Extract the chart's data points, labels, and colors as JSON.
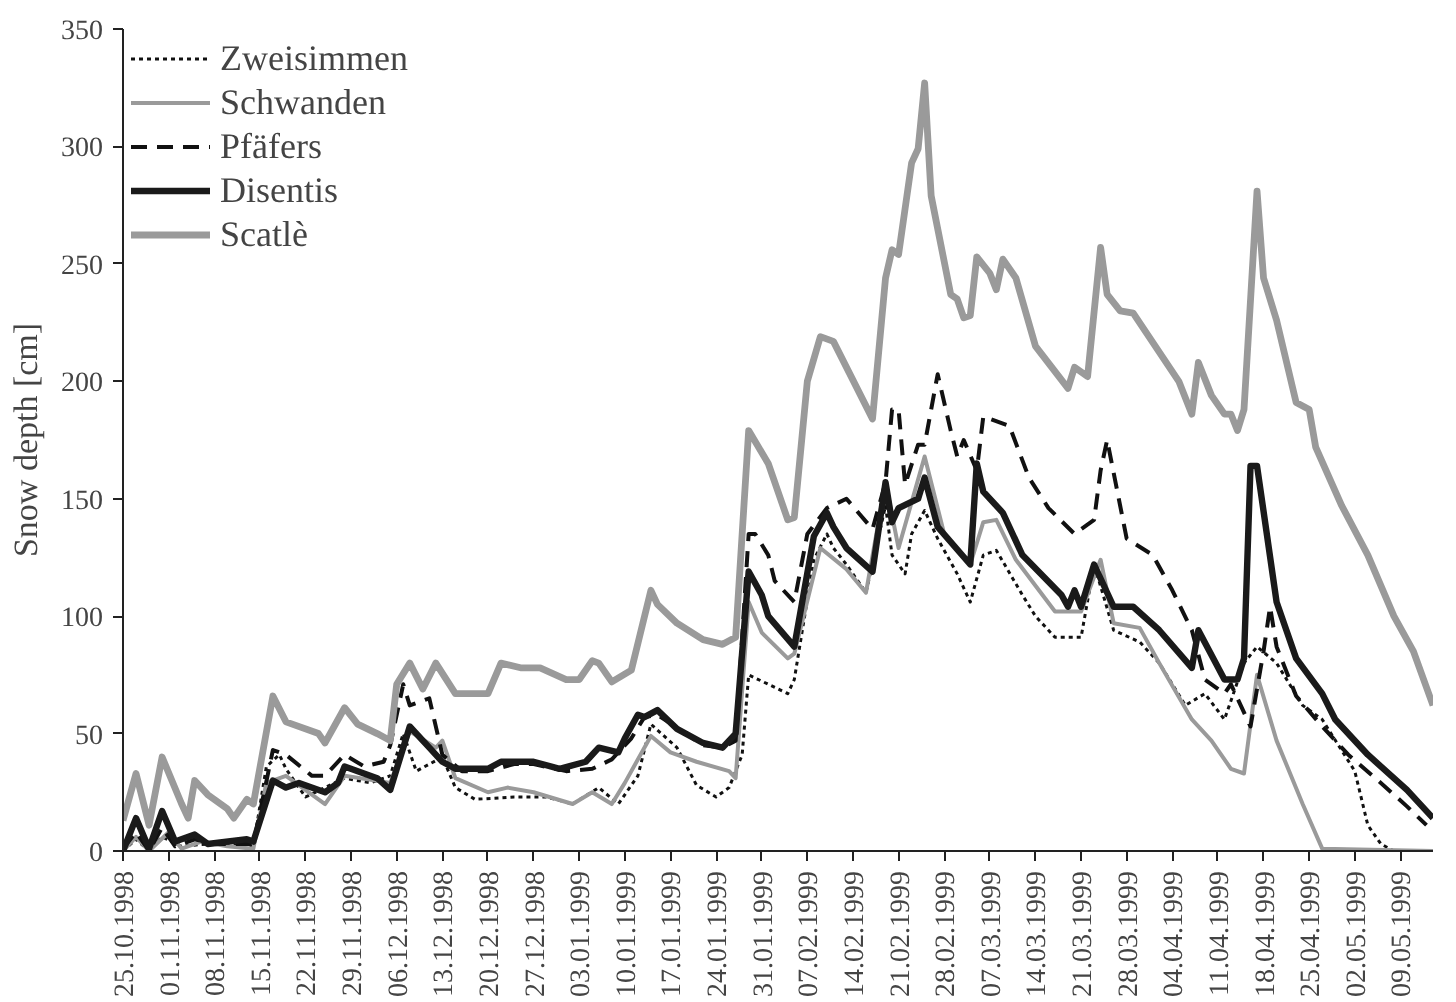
{
  "chart_data": {
    "type": "line",
    "ylabel": "Snow depth [cm]",
    "xlim": [
      "1998-10-25",
      "1999-05-14"
    ],
    "ylim": [
      0,
      350
    ],
    "yticks": [
      0,
      50,
      100,
      150,
      200,
      250,
      300,
      350
    ],
    "xticks": [
      {
        "value": "1998-10-25",
        "label": "25.10.1998"
      },
      {
        "value": "1998-11-01",
        "label": "01.11.1998"
      },
      {
        "value": "1998-11-08",
        "label": "08.11.1998"
      },
      {
        "value": "1998-11-15",
        "label": "15.11.1998"
      },
      {
        "value": "1998-11-22",
        "label": "22.11.1998"
      },
      {
        "value": "1998-11-29",
        "label": "29.11.1998"
      },
      {
        "value": "1998-12-06",
        "label": "06.12.1998"
      },
      {
        "value": "1998-12-13",
        "label": "13.12.1998"
      },
      {
        "value": "1998-12-20",
        "label": "20.12.1998"
      },
      {
        "value": "1998-12-27",
        "label": "27.12.1998"
      },
      {
        "value": "1999-01-03",
        "label": "03.01.1999"
      },
      {
        "value": "1999-01-10",
        "label": "10.01.1999"
      },
      {
        "value": "1999-01-17",
        "label": "17.01.1999"
      },
      {
        "value": "1999-01-24",
        "label": "24.01.1999"
      },
      {
        "value": "1999-01-31",
        "label": "31.01.1999"
      },
      {
        "value": "1999-02-07",
        "label": "07.02.1999"
      },
      {
        "value": "1999-02-14",
        "label": "14.02.1999"
      },
      {
        "value": "1999-02-21",
        "label": "21.02.1999"
      },
      {
        "value": "1999-02-28",
        "label": "28.02.1999"
      },
      {
        "value": "1999-03-07",
        "label": "07.03.1999"
      },
      {
        "value": "1999-03-14",
        "label": "14.03.1999"
      },
      {
        "value": "1999-03-21",
        "label": "21.03.1999"
      },
      {
        "value": "1999-03-28",
        "label": "28.03.1999"
      },
      {
        "value": "1999-04-04",
        "label": "04.04.1999"
      },
      {
        "value": "1999-04-11",
        "label": "11.04.1999"
      },
      {
        "value": "1999-04-18",
        "label": "18.04.1999"
      },
      {
        "value": "1999-04-25",
        "label": "25.04.1999"
      },
      {
        "value": "1999-05-02",
        "label": "02.05.1999"
      },
      {
        "value": "1999-05-09",
        "label": "09.05.1999"
      }
    ],
    "grid": false,
    "legend": "top left",
    "marker": "none",
    "series": [
      {
        "name": "Zweisimmen",
        "color": "#111111",
        "line_style": "dotted",
        "x": [
          "1998-10-25",
          "1998-10-27",
          "1998-10-29",
          "1998-10-31",
          "1998-11-03",
          "1998-11-07",
          "1998-11-14",
          "1998-11-16",
          "1998-11-18",
          "1998-11-19",
          "1998-11-22",
          "1998-11-25",
          "1998-11-28",
          "1998-12-02",
          "1998-12-05",
          "1998-12-07",
          "1998-12-09",
          "1998-12-13",
          "1998-12-15",
          "1998-12-18",
          "1998-12-24",
          "1998-12-29",
          "1999-01-02",
          "1999-01-06",
          "1999-01-09",
          "1999-01-12",
          "1999-01-14",
          "1999-01-18",
          "1999-01-21",
          "1999-01-24",
          "1999-01-26",
          "1999-01-28",
          "1999-01-29",
          "1999-02-01",
          "1999-02-04",
          "1999-02-05",
          "1999-02-08",
          "1999-02-10",
          "1999-02-11",
          "1999-02-13",
          "1999-02-16",
          "1999-02-19",
          "1999-02-20",
          "1999-02-22",
          "1999-02-23",
          "1999-02-25",
          "1999-02-27",
          "1999-03-02",
          "1999-03-04",
          "1999-03-06",
          "1999-03-08",
          "1999-03-12",
          "1999-03-14",
          "1999-03-17",
          "1999-03-21",
          "1999-03-23",
          "1999-03-26",
          "1999-03-30",
          "1999-04-02",
          "1999-04-06",
          "1999-04-09",
          "1999-04-12",
          "1999-04-15",
          "1999-04-17",
          "1999-04-20",
          "1999-04-24",
          "1999-04-27",
          "1999-05-02",
          "1999-05-04",
          "1999-05-06",
          "1999-05-08",
          "1999-05-14"
        ],
        "values": [
          0,
          5,
          0,
          6,
          2,
          3,
          2,
          36,
          41,
          35,
          23,
          27,
          31,
          29,
          32,
          50,
          34,
          40,
          27,
          22,
          23,
          23,
          20,
          27,
          20,
          32,
          54,
          44,
          28,
          23,
          27,
          41,
          75,
          71,
          67,
          73,
          124,
          135,
          129,
          122,
          110,
          147,
          126,
          118,
          135,
          145,
          133,
          118,
          106,
          126,
          128,
          109,
          100,
          91,
          91,
          122,
          94,
          89,
          80,
          62,
          67,
          56,
          80,
          87,
          80,
          62,
          56,
          34,
          11,
          3,
          0,
          0
        ]
      },
      {
        "name": "Schwanden",
        "color": "#9a9a9a",
        "line_style": "solid",
        "x": [
          "1998-10-25",
          "1998-10-27",
          "1998-10-29",
          "1998-11-01",
          "1998-11-03",
          "1998-11-06",
          "1998-11-10",
          "1998-11-14",
          "1998-11-16",
          "1998-11-19",
          "1998-11-25",
          "1998-11-28",
          "1998-12-05",
          "1998-12-08",
          "1998-12-12",
          "1998-12-13",
          "1998-12-15",
          "1998-12-20",
          "1998-12-23",
          "1998-12-27",
          "1999-01-02",
          "1999-01-05",
          "1999-01-08",
          "1999-01-10",
          "1999-01-14",
          "1999-01-17",
          "1999-01-21",
          "1999-01-26",
          "1999-01-27",
          "1999-01-29",
          "1999-01-31",
          "1999-02-04",
          "1999-02-05",
          "1999-02-09",
          "1999-02-13",
          "1999-02-16",
          "1999-02-19",
          "1999-02-21",
          "1999-02-25",
          "1999-02-28",
          "1999-03-04",
          "1999-03-06",
          "1999-03-08",
          "1999-03-11",
          "1999-03-17",
          "1999-03-21",
          "1999-03-24",
          "1999-03-26",
          "1999-03-30",
          "1999-04-02",
          "1999-04-07",
          "1999-04-10",
          "1999-04-13",
          "1999-04-15",
          "1999-04-17",
          "1999-04-20",
          "1999-04-24",
          "1999-04-27",
          "1999-05-14"
        ],
        "values": [
          0,
          6,
          0,
          8,
          1,
          4,
          2,
          1,
          29,
          32,
          20,
          32,
          29,
          51,
          44,
          47,
          31,
          25,
          27,
          25,
          20,
          25,
          20,
          29,
          49,
          42,
          38,
          34,
          31,
          106,
          93,
          82,
          84,
          129,
          120,
          110,
          157,
          129,
          168,
          135,
          122,
          140,
          141,
          124,
          102,
          102,
          124,
          97,
          95,
          80,
          56,
          47,
          35,
          33,
          75,
          47,
          20,
          1,
          0
        ]
      },
      {
        "name": "Pfäfers",
        "color": "#111111",
        "line_style": "dashed",
        "x": [
          "1998-10-25",
          "1998-10-27",
          "1998-10-29",
          "1998-10-31",
          "1998-11-02",
          "1998-11-05",
          "1998-11-08",
          "1998-11-14",
          "1998-11-17",
          "1998-11-19",
          "1998-11-23",
          "1998-11-25",
          "1998-11-28",
          "1998-12-01",
          "1998-12-04",
          "1998-12-05",
          "1998-12-07",
          "1998-12-08",
          "1998-12-11",
          "1998-12-13",
          "1998-12-16",
          "1998-12-20",
          "1998-12-24",
          "1998-12-27",
          "1999-01-01",
          "1999-01-05",
          "1999-01-08",
          "1999-01-11",
          "1999-01-13",
          "1999-01-15",
          "1999-01-22",
          "1999-01-25",
          "1999-01-27",
          "1999-01-29",
          "1999-01-30",
          "1999-02-01",
          "1999-02-02",
          "1999-02-05",
          "1999-02-07",
          "1999-02-10",
          "1999-02-13",
          "1999-02-17",
          "1999-02-19",
          "1999-02-20",
          "1999-02-21",
          "1999-02-22",
          "1999-02-24",
          "1999-02-25",
          "1999-02-27",
          "1999-03-01",
          "1999-03-02",
          "1999-03-03",
          "1999-03-05",
          "1999-03-06",
          "1999-03-10",
          "1999-03-13",
          "1999-03-16",
          "1999-03-20",
          "1999-03-23",
          "1999-03-24",
          "1999-03-25",
          "1999-03-27",
          "1999-03-28",
          "1999-04-01",
          "1999-04-04",
          "1999-04-07",
          "1999-04-09",
          "1999-04-12",
          "1999-04-13",
          "1999-04-16",
          "1999-04-18",
          "1999-04-19",
          "1999-04-20",
          "1999-04-23",
          "1999-04-27",
          "1999-05-01",
          "1999-05-06",
          "1999-05-10",
          "1999-05-13"
        ],
        "values": [
          1,
          8,
          0,
          10,
          2,
          5,
          3,
          3,
          43,
          41,
          32,
          32,
          41,
          36,
          38,
          45,
          71,
          62,
          65,
          41,
          34,
          34,
          37,
          37,
          34,
          35,
          39,
          48,
          57,
          58,
          45,
          44,
          47,
          135,
          135,
          126,
          115,
          106,
          135,
          146,
          150,
          137,
          157,
          188,
          188,
          156,
          173,
          173,
          203,
          179,
          168,
          175,
          162,
          185,
          181,
          159,
          146,
          135,
          141,
          162,
          175,
          147,
          133,
          126,
          111,
          94,
          73,
          67,
          71,
          53,
          85,
          104,
          87,
          66,
          53,
          41,
          29,
          19,
          11
        ]
      },
      {
        "name": "Disentis",
        "color": "#1a1a1a",
        "line_style": "solid",
        "x": [
          "1998-10-25",
          "1998-10-27",
          "1998-10-29",
          "1998-10-31",
          "1998-11-02",
          "1998-11-05",
          "1998-11-07",
          "1998-11-13",
          "1998-11-14",
          "1998-11-17",
          "1998-11-19",
          "1998-11-21",
          "1998-11-25",
          "1998-11-27",
          "1998-11-28",
          "1998-12-03",
          "1998-12-05",
          "1998-12-08",
          "1998-12-11",
          "1998-12-13",
          "1998-12-15",
          "1998-12-20",
          "1998-12-22",
          "1998-12-27",
          "1998-12-31",
          "1999-01-04",
          "1999-01-06",
          "1999-01-09",
          "1999-01-10",
          "1999-01-12",
          "1999-01-13",
          "1999-01-15",
          "1999-01-18",
          "1999-01-22",
          "1999-01-25",
          "1999-01-27",
          "1999-01-29",
          "1999-01-31",
          "1999-02-01",
          "1999-02-05",
          "1999-02-08",
          "1999-02-10",
          "1999-02-11",
          "1999-02-13",
          "1999-02-17",
          "1999-02-19",
          "1999-02-20",
          "1999-02-21",
          "1999-02-24",
          "1999-02-25",
          "1999-02-27",
          "1999-03-04",
          "1999-03-05",
          "1999-03-06",
          "1999-03-09",
          "1999-03-12",
          "1999-03-18",
          "1999-03-19",
          "1999-03-20",
          "1999-03-21",
          "1999-03-23",
          "1999-03-26",
          "1999-03-29",
          "1999-04-02",
          "1999-04-07",
          "1999-04-08",
          "1999-04-12",
          "1999-04-14",
          "1999-04-15",
          "1999-04-16",
          "1999-04-17",
          "1999-04-20",
          "1999-04-23",
          "1999-04-27",
          "1999-04-29",
          "1999-05-04",
          "1999-05-10",
          "1999-05-14"
        ],
        "values": [
          0,
          14,
          1,
          17,
          4,
          7,
          3,
          5,
          4,
          30,
          27,
          29,
          25,
          29,
          36,
          31,
          26,
          53,
          44,
          38,
          35,
          35,
          38,
          38,
          35,
          38,
          44,
          42,
          48,
          58,
          57,
          60,
          52,
          46,
          44,
          50,
          119,
          109,
          100,
          87,
          134,
          144,
          138,
          129,
          119,
          157,
          140,
          146,
          150,
          159,
          138,
          122,
          165,
          153,
          144,
          126,
          109,
          104,
          111,
          104,
          122,
          104,
          104,
          94,
          78,
          94,
          73,
          73,
          82,
          164,
          164,
          106,
          82,
          67,
          56,
          41,
          26,
          14
        ]
      },
      {
        "name": "Scatlè",
        "color": "#9a9a9a",
        "line_style": "solid",
        "x": [
          "1998-10-25",
          "1998-10-27",
          "1998-10-29",
          "1998-10-31",
          "1998-11-03",
          "1998-11-04",
          "1998-11-05",
          "1998-11-07",
          "1998-11-10",
          "1998-11-11",
          "1998-11-13",
          "1998-11-14",
          "1998-11-17",
          "1998-11-19",
          "1998-11-24",
          "1998-11-25",
          "1998-11-28",
          "1998-11-30",
          "1998-12-03",
          "1998-12-05",
          "1998-12-06",
          "1998-12-08",
          "1998-12-10",
          "1998-12-12",
          "1998-12-15",
          "1998-12-20",
          "1998-12-22",
          "1998-12-25",
          "1998-12-28",
          "1999-01-01",
          "1999-01-03",
          "1999-01-05",
          "1999-01-06",
          "1999-01-08",
          "1999-01-11",
          "1999-01-14",
          "1999-01-15",
          "1999-01-18",
          "1999-01-22",
          "1999-01-25",
          "1999-01-27",
          "1999-01-29",
          "1999-02-01",
          "1999-02-04",
          "1999-02-05",
          "1999-02-07",
          "1999-02-09",
          "1999-02-11",
          "1999-02-17",
          "1999-02-19",
          "1999-02-20",
          "1999-02-21",
          "1999-02-23",
          "1999-02-24",
          "1999-02-25",
          "1999-02-26",
          "1999-03-01",
          "1999-03-02",
          "1999-03-03",
          "1999-03-04",
          "1999-03-05",
          "1999-03-07",
          "1999-03-08",
          "1999-03-09",
          "1999-03-11",
          "1999-03-14",
          "1999-03-19",
          "1999-03-20",
          "1999-03-22",
          "1999-03-24",
          "1999-03-25",
          "1999-03-27",
          "1999-03-29",
          "1999-04-05",
          "1999-04-07",
          "1999-04-08",
          "1999-04-10",
          "1999-04-12",
          "1999-04-13",
          "1999-04-14",
          "1999-04-15",
          "1999-04-17",
          "1999-04-18",
          "1999-04-20",
          "1999-04-23",
          "1999-04-25",
          "1999-04-26",
          "1999-04-30",
          "1999-05-04",
          "1999-05-08",
          "1999-05-11",
          "1999-05-14"
        ],
        "values": [
          13,
          33,
          11,
          40,
          20,
          14,
          30,
          24,
          18,
          14,
          22,
          20,
          66,
          55,
          50,
          46,
          61,
          54,
          50,
          47,
          71,
          80,
          69,
          80,
          67,
          67,
          80,
          78,
          78,
          73,
          73,
          81,
          80,
          72,
          77,
          111,
          105,
          97,
          90,
          88,
          91,
          179,
          165,
          141,
          142,
          200,
          219,
          217,
          184,
          244,
          256,
          254,
          293,
          299,
          327,
          279,
          237,
          235,
          227,
          228,
          253,
          246,
          239,
          252,
          244,
          215,
          197,
          206,
          202,
          257,
          237,
          230,
          229,
          200,
          186,
          208,
          194,
          186,
          186,
          179,
          188,
          281,
          244,
          226,
          191,
          188,
          172,
          147,
          126,
          100,
          85,
          62
        ]
      }
    ]
  }
}
